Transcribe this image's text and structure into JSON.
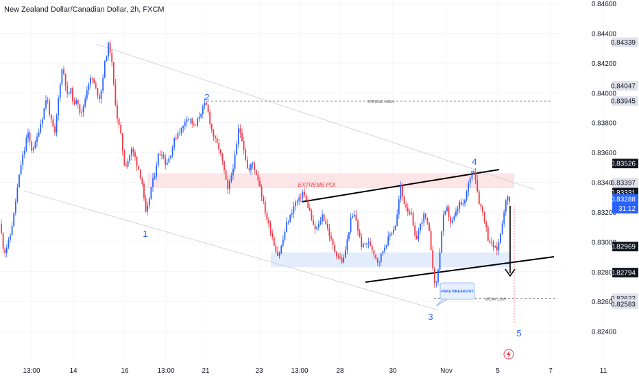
{
  "chart_data": {
    "type": "candlestick",
    "title": "New Zealand Dollar/Canadian Dollar, 2h, FXCM",
    "ylim": [
      0.8232,
      0.846
    ],
    "y_ticks": [
      "0.84600",
      "0.84400",
      "0.84200",
      "0.84000",
      "0.83800",
      "0.83600",
      "0.83400",
      "0.83200",
      "0.83000",
      "0.82800",
      "0.82600",
      "0.82400"
    ],
    "x_ticks": [
      "13:00",
      "14",
      "16",
      "13:00",
      "21",
      "23",
      "13:00",
      "28",
      "30",
      "Nov",
      "5",
      "7",
      "11"
    ],
    "colors": {
      "up": "#2962ff",
      "down": "#f23645",
      "grid": "#e0e3eb",
      "text": "#131722"
    },
    "price_tags": [
      {
        "value": 0.84339,
        "label": "0.84339",
        "style": "gray"
      },
      {
        "value": 0.84047,
        "label": "0.84047",
        "style": "gray"
      },
      {
        "value": 0.83945,
        "label": "0.83945",
        "style": "gray"
      },
      {
        "value": 0.83526,
        "label": "0.83526",
        "style": "dark"
      },
      {
        "value": 0.83397,
        "label": "0.83397",
        "style": "gray"
      },
      {
        "value": 0.83331,
        "label": "0.83331",
        "style": "dark"
      },
      {
        "value": 0.83288,
        "label": "0.83288",
        "style": "blue",
        "sub": "31:12"
      },
      {
        "value": 0.82969,
        "label": "0.82969",
        "style": "dark"
      },
      {
        "value": 0.82794,
        "label": "0.82794",
        "style": "dark"
      },
      {
        "value": 0.82622,
        "label": "0.82622",
        "style": "gray"
      },
      {
        "value": 0.82583,
        "label": "0.82583",
        "style": "gray"
      }
    ],
    "annotations": {
      "strong_high": "STRONG HIGH",
      "weak_low": "WEAK LOW",
      "extreme_poi": "EXTREME POI",
      "fake_breakout": "FAKE BREAKOUT",
      "waves": [
        "1",
        "2",
        "3",
        "4",
        "5"
      ]
    },
    "zones": [
      {
        "name": "extreme-poi",
        "from": 0.8336,
        "to": 0.8346,
        "color": "#fde4e6"
      },
      {
        "name": "demand",
        "from": 0.8283,
        "to": 0.8293,
        "color": "#e3ecfc"
      }
    ],
    "levels": {
      "strong_high": 0.83945,
      "weak_low": 0.82622
    },
    "path": [
      [
        0,
        0.8312
      ],
      [
        6,
        0.8292
      ],
      [
        14,
        0.8302
      ],
      [
        20,
        0.8318
      ],
      [
        26,
        0.8338
      ],
      [
        32,
        0.8356
      ],
      [
        36,
        0.8362
      ],
      [
        40,
        0.8374
      ],
      [
        46,
        0.8362
      ],
      [
        52,
        0.8366
      ],
      [
        58,
        0.8378
      ],
      [
        62,
        0.8384
      ],
      [
        68,
        0.8398
      ],
      [
        74,
        0.8382
      ],
      [
        80,
        0.8372
      ],
      [
        86,
        0.84
      ],
      [
        90,
        0.8416
      ],
      [
        94,
        0.8412
      ],
      [
        98,
        0.8398
      ],
      [
        104,
        0.8402
      ],
      [
        108,
        0.839
      ],
      [
        112,
        0.8398
      ],
      [
        118,
        0.8384
      ],
      [
        124,
        0.8396
      ],
      [
        128,
        0.8406
      ],
      [
        134,
        0.841
      ],
      [
        140,
        0.8402
      ],
      [
        146,
        0.8396
      ],
      [
        152,
        0.8418
      ],
      [
        158,
        0.8432
      ],
      [
        162,
        0.8426
      ],
      [
        166,
        0.8404
      ],
      [
        170,
        0.8386
      ],
      [
        176,
        0.8372
      ],
      [
        182,
        0.835
      ],
      [
        186,
        0.8354
      ],
      [
        192,
        0.8362
      ],
      [
        196,
        0.8358
      ],
      [
        200,
        0.8352
      ],
      [
        204,
        0.8346
      ],
      [
        208,
        0.8338
      ],
      [
        212,
        0.8318
      ],
      [
        216,
        0.8324
      ],
      [
        220,
        0.8336
      ],
      [
        226,
        0.8346
      ],
      [
        230,
        0.8358
      ],
      [
        236,
        0.836
      ],
      [
        242,
        0.8352
      ],
      [
        248,
        0.8358
      ],
      [
        254,
        0.8368
      ],
      [
        260,
        0.8374
      ],
      [
        266,
        0.8376
      ],
      [
        272,
        0.8384
      ],
      [
        278,
        0.8382
      ],
      [
        284,
        0.8376
      ],
      [
        290,
        0.8384
      ],
      [
        296,
        0.839
      ],
      [
        300,
        0.8393
      ],
      [
        304,
        0.8386
      ],
      [
        308,
        0.8376
      ],
      [
        314,
        0.8368
      ],
      [
        320,
        0.8362
      ],
      [
        326,
        0.835
      ],
      [
        332,
        0.8334
      ],
      [
        338,
        0.8346
      ],
      [
        344,
        0.836
      ],
      [
        348,
        0.8376
      ],
      [
        352,
        0.8372
      ],
      [
        356,
        0.8362
      ],
      [
        362,
        0.8346
      ],
      [
        368,
        0.8354
      ],
      [
        372,
        0.8348
      ],
      [
        378,
        0.834
      ],
      [
        384,
        0.8326
      ],
      [
        390,
        0.8314
      ],
      [
        396,
        0.8306
      ],
      [
        400,
        0.8298
      ],
      [
        406,
        0.829
      ],
      [
        412,
        0.83
      ],
      [
        418,
        0.8312
      ],
      [
        424,
        0.8318
      ],
      [
        430,
        0.8326
      ],
      [
        436,
        0.8328
      ],
      [
        442,
        0.8334
      ],
      [
        446,
        0.8328
      ],
      [
        452,
        0.832
      ],
      [
        458,
        0.8308
      ],
      [
        464,
        0.831
      ],
      [
        470,
        0.8318
      ],
      [
        476,
        0.8312
      ],
      [
        482,
        0.8302
      ],
      [
        488,
        0.8294
      ],
      [
        494,
        0.829
      ],
      [
        500,
        0.8286
      ],
      [
        506,
        0.83
      ],
      [
        512,
        0.8316
      ],
      [
        518,
        0.8318
      ],
      [
        522,
        0.8308
      ],
      [
        528,
        0.8296
      ],
      [
        534,
        0.83
      ],
      [
        540,
        0.8298
      ],
      [
        546,
        0.8292
      ],
      [
        552,
        0.8286
      ],
      [
        558,
        0.8294
      ],
      [
        564,
        0.83
      ],
      [
        570,
        0.8306
      ],
      [
        576,
        0.831
      ],
      [
        580,
        0.832
      ],
      [
        584,
        0.8338
      ],
      [
        588,
        0.8328
      ],
      [
        594,
        0.8322
      ],
      [
        600,
        0.8318
      ],
      [
        606,
        0.83
      ],
      [
        612,
        0.831
      ],
      [
        618,
        0.8318
      ],
      [
        622,
        0.8314
      ],
      [
        626,
        0.8306
      ],
      [
        630,
        0.829
      ],
      [
        634,
        0.827
      ],
      [
        638,
        0.8276
      ],
      [
        642,
        0.8296
      ],
      [
        646,
        0.8316
      ],
      [
        652,
        0.8322
      ],
      [
        658,
        0.8312
      ],
      [
        664,
        0.8318
      ],
      [
        670,
        0.8326
      ],
      [
        676,
        0.8324
      ],
      [
        682,
        0.8336
      ],
      [
        686,
        0.8344
      ],
      [
        690,
        0.835
      ],
      [
        694,
        0.8342
      ],
      [
        698,
        0.8328
      ],
      [
        704,
        0.832
      ],
      [
        708,
        0.8312
      ],
      [
        712,
        0.8302
      ],
      [
        718,
        0.8298
      ],
      [
        724,
        0.8294
      ],
      [
        728,
        0.83
      ],
      [
        732,
        0.8312
      ],
      [
        736,
        0.8324
      ],
      [
        740,
        0.833
      ],
      [
        744,
        0.8328
      ]
    ]
  }
}
